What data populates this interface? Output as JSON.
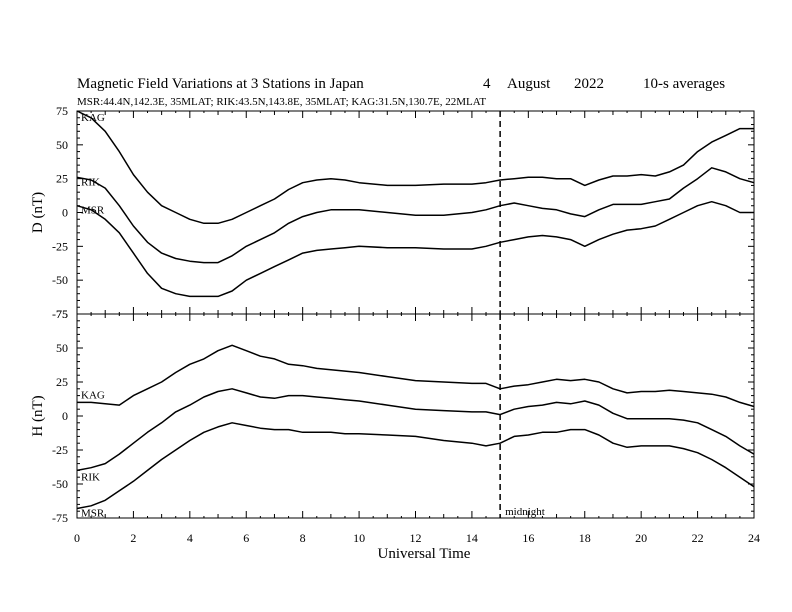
{
  "chart_data": {
    "type": "line",
    "title_parts": {
      "main": "Magnetic Field Variations at 3 Stations in Japan",
      "day": "4",
      "month": "August",
      "year": "2022",
      "note": "10-s averages"
    },
    "subtitle": "MSR:44.4N,142.3E, 35MLAT;  RIK:43.5N,143.8E, 35MLAT;  KAG:31.5N,130.7E, 22MLAT",
    "xlabel": "Universal Time",
    "xlim": [
      0,
      24
    ],
    "xticks": [
      0,
      2,
      4,
      6,
      8,
      10,
      12,
      14,
      16,
      18,
      20,
      22,
      24
    ],
    "grid": false,
    "marker_line": {
      "x": 15,
      "style": "dashed",
      "label": "midnight"
    },
    "panels": [
      {
        "ylabel": "D (nT)",
        "ylim": [
          -75,
          75
        ],
        "yticks": [
          75,
          50,
          25,
          0,
          -25,
          -50,
          -75
        ],
        "series": [
          {
            "name": "KAG",
            "x": [
              0,
              0.5,
              1,
              1.5,
              2,
              2.5,
              3,
              3.5,
              4,
              4.5,
              5,
              5.5,
              6,
              6.5,
              7,
              7.5,
              8,
              8.5,
              9,
              9.5,
              10,
              11,
              12,
              13,
              14,
              14.5,
              15,
              15.5,
              16,
              16.5,
              17,
              17.5,
              18,
              18.5,
              19,
              19.5,
              20,
              20.5,
              21,
              21.5,
              22,
              22.5,
              23,
              23.5,
              24
            ],
            "values": [
              75,
              70,
              60,
              45,
              28,
              15,
              5,
              0,
              -5,
              -8,
              -8,
              -5,
              0,
              5,
              10,
              17,
              22,
              24,
              25,
              24,
              22,
              20,
              20,
              21,
              21,
              22,
              24,
              25,
              26,
              26,
              25,
              25,
              20,
              24,
              27,
              27,
              28,
              27,
              30,
              35,
              45,
              52,
              57,
              62,
              62
            ]
          },
          {
            "name": "RIK",
            "x": [
              0,
              0.5,
              1,
              1.5,
              2,
              2.5,
              3,
              3.5,
              4,
              4.5,
              5,
              5.5,
              6,
              6.5,
              7,
              7.5,
              8,
              8.5,
              9,
              9.5,
              10,
              11,
              12,
              13,
              14,
              14.5,
              15,
              15.5,
              16,
              16.5,
              17,
              17.5,
              18,
              18.5,
              19,
              19.5,
              20,
              20.5,
              21,
              21.5,
              22,
              22.5,
              23,
              23.5,
              24
            ],
            "values": [
              26,
              24,
              18,
              5,
              -10,
              -22,
              -30,
              -34,
              -36,
              -37,
              -37,
              -32,
              -25,
              -20,
              -15,
              -8,
              -3,
              0,
              2,
              2,
              2,
              0,
              -2,
              -2,
              0,
              2,
              5,
              7,
              5,
              3,
              2,
              -1,
              -3,
              2,
              6,
              6,
              6,
              8,
              10,
              18,
              25,
              33,
              30,
              25,
              22
            ]
          },
          {
            "name": "MSR",
            "x": [
              0,
              0.5,
              1,
              1.5,
              2,
              2.5,
              3,
              3.5,
              4,
              4.5,
              5,
              5.5,
              6,
              6.5,
              7,
              7.5,
              8,
              8.5,
              9,
              9.5,
              10,
              11,
              12,
              13,
              14,
              14.5,
              15,
              15.5,
              16,
              16.5,
              17,
              17.5,
              18,
              18.5,
              19,
              19.5,
              20,
              20.5,
              21,
              21.5,
              22,
              22.5,
              23,
              23.5,
              24
            ],
            "values": [
              5,
              2,
              -5,
              -15,
              -30,
              -45,
              -56,
              -60,
              -62,
              -62,
              -62,
              -58,
              -50,
              -45,
              -40,
              -35,
              -30,
              -28,
              -27,
              -26,
              -25,
              -26,
              -26,
              -27,
              -27,
              -25,
              -22,
              -20,
              -18,
              -17,
              -18,
              -20,
              -25,
              -20,
              -16,
              -13,
              -12,
              -10,
              -5,
              0,
              5,
              8,
              5,
              0,
              0
            ]
          }
        ]
      },
      {
        "ylabel": "H (nT)",
        "ylim": [
          -75,
          75
        ],
        "yticks": [
          75,
          50,
          25,
          0,
          -25,
          -50,
          -75
        ],
        "series": [
          {
            "name": "KAG",
            "x": [
              0,
              0.5,
              1,
              1.5,
              2,
              2.5,
              3,
              3.5,
              4,
              4.5,
              5,
              5.5,
              6,
              6.5,
              7,
              7.5,
              8,
              8.5,
              9,
              9.5,
              10,
              11,
              12,
              13,
              14,
              14.5,
              15,
              15.5,
              16,
              16.5,
              17,
              17.5,
              18,
              18.5,
              19,
              19.5,
              20,
              20.5,
              21,
              21.5,
              22,
              22.5,
              23,
              23.5,
              24
            ],
            "values": [
              10,
              10,
              9,
              8,
              15,
              20,
              25,
              32,
              38,
              42,
              48,
              52,
              48,
              44,
              42,
              38,
              37,
              35,
              34,
              33,
              32,
              29,
              26,
              25,
              24,
              24,
              20,
              22,
              23,
              25,
              27,
              26,
              27,
              25,
              20,
              17,
              18,
              18,
              19,
              18,
              17,
              16,
              14,
              10,
              7
            ]
          },
          {
            "name": "RIK",
            "x": [
              0,
              0.5,
              1,
              1.5,
              2,
              2.5,
              3,
              3.5,
              4,
              4.5,
              5,
              5.5,
              6,
              6.5,
              7,
              7.5,
              8,
              8.5,
              9,
              9.5,
              10,
              11,
              12,
              13,
              14,
              14.5,
              15,
              15.5,
              16,
              16.5,
              17,
              17.5,
              18,
              18.5,
              19,
              19.5,
              20,
              20.5,
              21,
              21.5,
              22,
              22.5,
              23,
              23.5,
              24
            ],
            "values": [
              -40,
              -38,
              -35,
              -28,
              -20,
              -12,
              -5,
              3,
              8,
              14,
              18,
              20,
              17,
              14,
              13,
              15,
              15,
              14,
              13,
              12,
              11,
              8,
              5,
              4,
              3,
              3,
              1,
              5,
              7,
              8,
              10,
              9,
              11,
              8,
              2,
              -2,
              -2,
              -2,
              -2,
              -3,
              -5,
              -10,
              -15,
              -22,
              -28
            ]
          },
          {
            "name": "MSR",
            "x": [
              0,
              0.5,
              1,
              1.5,
              2,
              2.5,
              3,
              3.5,
              4,
              4.5,
              5,
              5.5,
              6,
              6.5,
              7,
              7.5,
              8,
              8.5,
              9,
              9.5,
              10,
              11,
              12,
              13,
              14,
              14.5,
              15,
              15.5,
              16,
              16.5,
              17,
              17.5,
              18,
              18.5,
              19,
              19.5,
              20,
              20.5,
              21,
              21.5,
              22,
              22.5,
              23,
              23.5,
              24
            ],
            "values": [
              -68,
              -66,
              -62,
              -55,
              -48,
              -40,
              -32,
              -25,
              -18,
              -12,
              -8,
              -5,
              -7,
              -9,
              -10,
              -10,
              -12,
              -12,
              -12,
              -13,
              -13,
              -14,
              -15,
              -18,
              -20,
              -22,
              -20,
              -15,
              -14,
              -12,
              -12,
              -10,
              -10,
              -14,
              -20,
              -23,
              -22,
              -22,
              -22,
              -24,
              -27,
              -32,
              -38,
              -45,
              -52
            ]
          }
        ]
      }
    ]
  }
}
